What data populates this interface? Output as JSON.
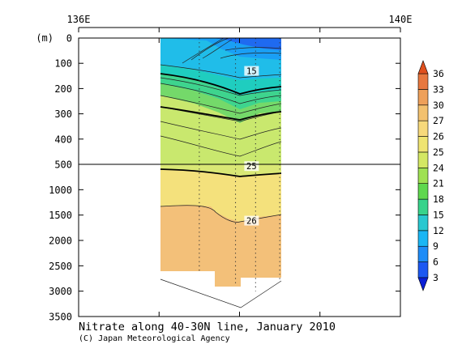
{
  "chart_data": {
    "type": "heatmap",
    "title": "Nitrate along 40-30N line, January 2010",
    "credit": "(C) Japan Meteorological Agency",
    "ylabel": "(m)",
    "x_ticks": [
      "136E",
      "140E"
    ],
    "x_range": [
      136,
      140
    ],
    "y_ticks_upper": [
      0,
      100,
      200,
      300,
      400,
      500
    ],
    "y_ticks_lower": [
      1000,
      1500,
      2000,
      2500,
      3000,
      3500
    ],
    "y_break": 500,
    "colorbar": {
      "levels": [
        3,
        6,
        9,
        12,
        15,
        18,
        21,
        24,
        25,
        26,
        27,
        30,
        33,
        36
      ],
      "colors": [
        "#0a1fd6",
        "#1c58f2",
        "#1e8cf7",
        "#1ab6f4",
        "#28c8d0",
        "#37d38b",
        "#5fd84e",
        "#9fe152",
        "#d4e863",
        "#efe471",
        "#f7d97b",
        "#f3c16f",
        "#eea05a",
        "#e8783f",
        "#e0501e"
      ]
    },
    "contour_labels": [
      {
        "value": "15",
        "x": 138.15,
        "depth": 130
      },
      {
        "value": "25",
        "x": 138.15,
        "depth": 535
      },
      {
        "value": "26",
        "x": 138.15,
        "depth": 1610
      }
    ],
    "stations": [
      137.5,
      137.95,
      138.2,
      138.5
    ],
    "section_x_range": [
      137.5,
      138.5
    ]
  }
}
